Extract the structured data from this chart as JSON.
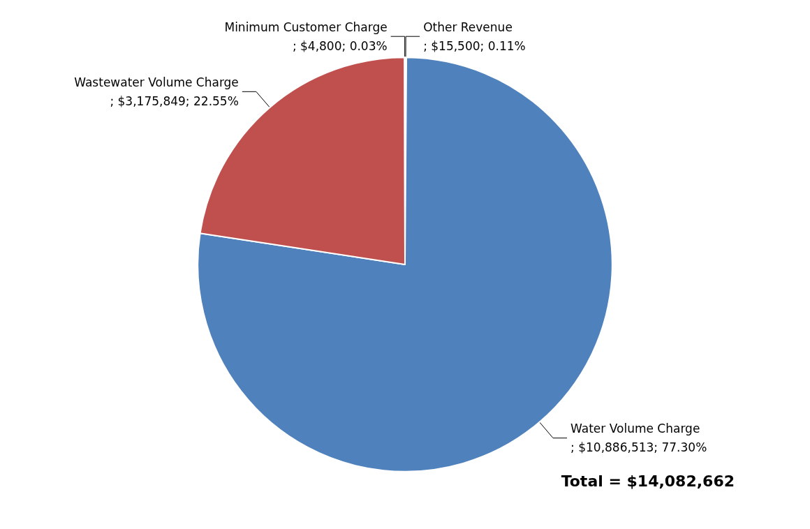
{
  "chart_data": {
    "type": "pie",
    "categories": [
      "Other Revenue",
      "Water Volume Charge",
      "Wastewater Volume Charge",
      "Minimum Customer Charge"
    ],
    "values": [
      15500,
      10886513,
      3175849,
      4800
    ],
    "colors": [
      "#8064a2",
      "#4f81bd",
      "#c0504d",
      "#9bbb59"
    ],
    "value_labels": [
      "; $15,500; 0.11%",
      "; $10,886,513; 77.30%",
      "; $3,175,849; 22.55%",
      "; $4,800; 0.03%"
    ],
    "annotations": [
      "Total = $14,082,662"
    ],
    "legend": false
  }
}
